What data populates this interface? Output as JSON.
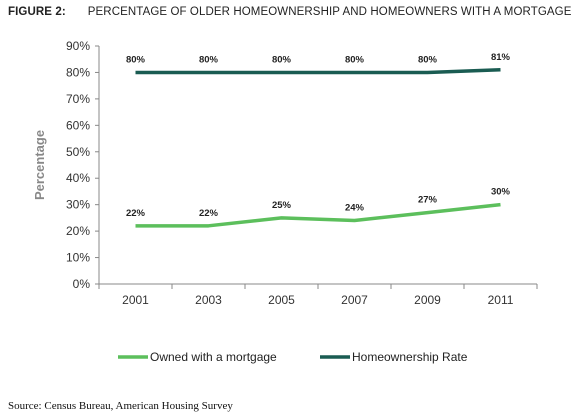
{
  "figure": {
    "label": "FIGURE 2:",
    "title": "PERCENTAGE OF OLDER HOMEOWNERSHIP AND HOMEOWNERS WITH A MORTGAGE"
  },
  "source": "Source: Census Bureau, American Housing Survey",
  "chart_data": {
    "type": "line",
    "title": "PERCENTAGE OF OLDER HOMEOWNERSHIP AND HOMEOWNERS WITH A MORTGAGE",
    "xlabel": "",
    "ylabel": "Percentage",
    "categories": [
      "2001",
      "2003",
      "2005",
      "2007",
      "2009",
      "2011"
    ],
    "ylim": [
      0,
      90
    ],
    "yticks": [
      0,
      10,
      20,
      30,
      40,
      50,
      60,
      70,
      80,
      90
    ],
    "ytick_labels": [
      "0%",
      "10%",
      "20%",
      "30%",
      "40%",
      "50%",
      "60%",
      "70%",
      "80%",
      "90%"
    ],
    "grid": false,
    "legend_position": "bottom",
    "series": [
      {
        "name": "Owned with a mortgage",
        "values": [
          22,
          22,
          25,
          24,
          27,
          30
        ],
        "labels": [
          "22%",
          "22%",
          "25%",
          "24%",
          "27%",
          "30%"
        ],
        "color": "#5cbf5c"
      },
      {
        "name": "Homeownership Rate",
        "values": [
          80,
          80,
          80,
          80,
          80,
          81
        ],
        "labels": [
          "80%",
          "80%",
          "80%",
          "80%",
          "80%",
          "81%"
        ],
        "color": "#1a5c52"
      }
    ]
  }
}
